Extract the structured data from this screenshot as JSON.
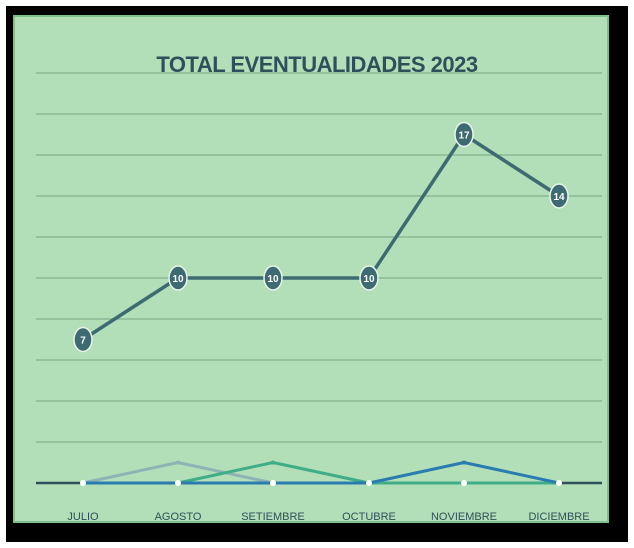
{
  "chart_data": {
    "type": "line",
    "title": "TOTAL EVENTUALIDADES 2023",
    "xlabel": "",
    "ylabel": "",
    "categories": [
      "JULIO",
      "AGOSTO",
      "SETIEMBRE",
      "OCTUBRE",
      "NOVIEMBRE",
      "DICIEMBRE"
    ],
    "series": [
      {
        "values": [
          7,
          10,
          10,
          10,
          17,
          14
        ],
        "color": "#3e6a72",
        "labeled": true
      },
      {
        "values": [
          0,
          1,
          0,
          0,
          0,
          0
        ],
        "color": "#8fb3b2",
        "labeled": false
      },
      {
        "values": [
          0,
          0,
          1,
          0,
          0,
          0
        ],
        "color": "#3fae86",
        "labeled": false
      },
      {
        "values": [
          0,
          0,
          0,
          0,
          1,
          0
        ],
        "color": "#2a7bb0",
        "labeled": false
      }
    ],
    "ylim": [
      0,
      20
    ],
    "grid": true,
    "legend": "none"
  },
  "colors": {
    "background": "#b2dfb8",
    "gridline": "#5f8f6a",
    "axis": "#2f4f5a",
    "frame": "#000000"
  }
}
